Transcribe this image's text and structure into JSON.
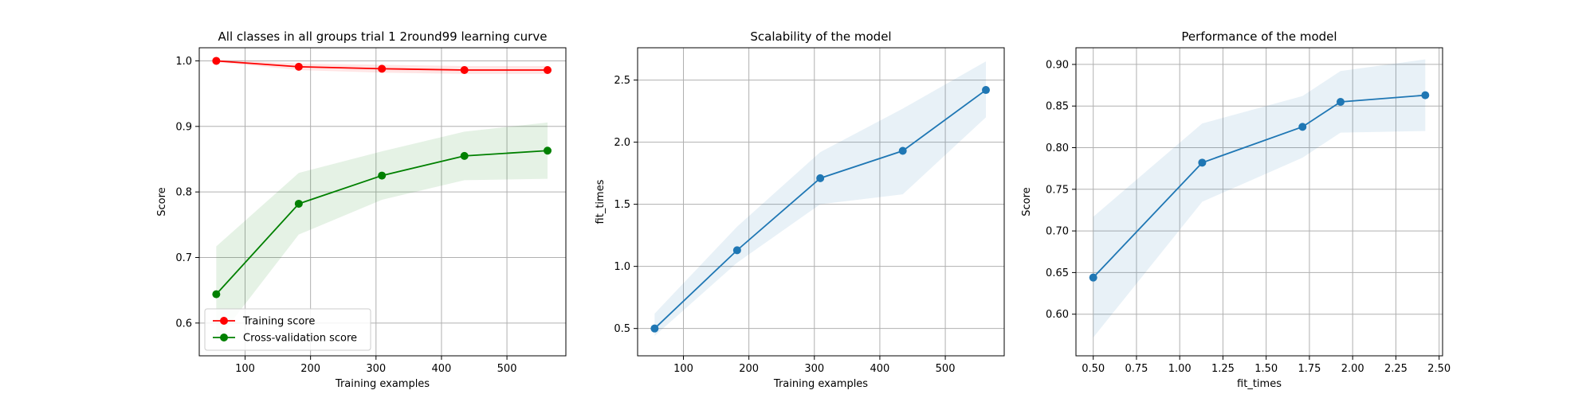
{
  "chart_data": [
    {
      "type": "line",
      "title": "All classes in all groups trial 1 2round99 learning curve",
      "xlabel": "Training examples",
      "ylabel": "Score",
      "xlim": [
        30,
        590
      ],
      "ylim": [
        0.55,
        1.02
      ],
      "xticks": [
        100,
        200,
        300,
        400,
        500
      ],
      "yticks": [
        0.6,
        0.7,
        0.8,
        0.9,
        1.0
      ],
      "xtick_labels": [
        "100",
        "200",
        "300",
        "400",
        "500"
      ],
      "ytick_labels": [
        "0.6",
        "0.7",
        "0.8",
        "0.9",
        "1.0"
      ],
      "grid": true,
      "legend_position": "lower-left",
      "series": [
        {
          "name": "Training score",
          "color": "#ff0000",
          "fill_color": "#ff0000",
          "x": [
            56,
            182,
            309,
            435,
            562
          ],
          "y": [
            1.0,
            0.991,
            0.988,
            0.986,
            0.986
          ],
          "y_lower": [
            0.998,
            0.986,
            0.982,
            0.98,
            0.98
          ],
          "y_upper": [
            1.002,
            0.996,
            0.994,
            0.992,
            0.992
          ]
        },
        {
          "name": "Cross-validation score",
          "color": "#008000",
          "fill_color": "#008000",
          "x": [
            56,
            182,
            309,
            435,
            562
          ],
          "y": [
            0.644,
            0.782,
            0.825,
            0.855,
            0.863
          ],
          "y_lower": [
            0.572,
            0.735,
            0.788,
            0.818,
            0.82
          ],
          "y_upper": [
            0.717,
            0.829,
            0.862,
            0.892,
            0.906
          ]
        }
      ]
    },
    {
      "type": "line",
      "title": "Scalability of the model",
      "xlabel": "Training examples",
      "ylabel": "fit_times",
      "xlim": [
        30,
        590
      ],
      "ylim": [
        0.28,
        2.76
      ],
      "xticks": [
        100,
        200,
        300,
        400,
        500
      ],
      "yticks": [
        0.5,
        1.0,
        1.5,
        2.0,
        2.5
      ],
      "xtick_labels": [
        "100",
        "200",
        "300",
        "400",
        "500"
      ],
      "ytick_labels": [
        "0.5",
        "1.0",
        "1.5",
        "2.0",
        "2.5"
      ],
      "grid": true,
      "series": [
        {
          "color": "#1f77b4",
          "fill_color": "#1f77b4",
          "x": [
            56,
            182,
            309,
            435,
            562
          ],
          "y": [
            0.5,
            1.13,
            1.71,
            1.93,
            2.42
          ],
          "y_lower": [
            0.44,
            1.03,
            1.5,
            1.58,
            2.2
          ],
          "y_upper": [
            0.62,
            1.32,
            1.92,
            2.27,
            2.65
          ]
        }
      ]
    },
    {
      "type": "line",
      "title": "Performance of the model",
      "xlabel": "fit_times",
      "ylabel": "Score",
      "xlim": [
        0.4,
        2.52
      ],
      "ylim": [
        0.55,
        0.92
      ],
      "xticks": [
        0.5,
        0.75,
        1.0,
        1.25,
        1.5,
        1.75,
        2.0,
        2.25,
        2.5
      ],
      "yticks": [
        0.6,
        0.65,
        0.7,
        0.75,
        0.8,
        0.85,
        0.9
      ],
      "xtick_labels": [
        "0.50",
        "0.75",
        "1.00",
        "1.25",
        "1.50",
        "1.75",
        "2.00",
        "2.25",
        "2.50"
      ],
      "ytick_labels": [
        "0.60",
        "0.65",
        "0.70",
        "0.75",
        "0.80",
        "0.85",
        "0.90"
      ],
      "grid": true,
      "series": [
        {
          "color": "#1f77b4",
          "fill_color": "#1f77b4",
          "x": [
            0.5,
            1.13,
            1.71,
            1.93,
            2.42
          ],
          "y": [
            0.644,
            0.782,
            0.825,
            0.855,
            0.863
          ],
          "y_lower": [
            0.572,
            0.735,
            0.788,
            0.818,
            0.82
          ],
          "y_upper": [
            0.717,
            0.829,
            0.862,
            0.892,
            0.906
          ]
        }
      ]
    }
  ]
}
